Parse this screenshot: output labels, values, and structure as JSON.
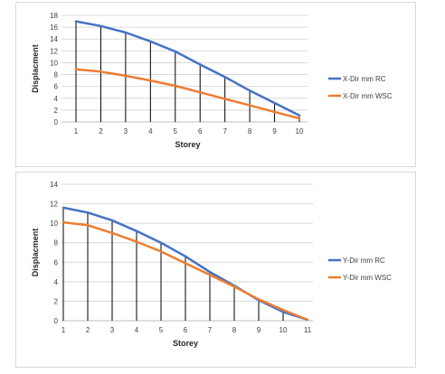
{
  "chart_data": [
    {
      "type": "line",
      "title": "",
      "xlabel": "Storey",
      "ylabel": "Displacment",
      "categories": [
        "1",
        "2",
        "3",
        "4",
        "5",
        "6",
        "7",
        "8",
        "9",
        "10"
      ],
      "ylim": [
        0,
        18
      ],
      "yticks": [
        "0",
        "2",
        "4",
        "6",
        "8",
        "10",
        "12",
        "14",
        "16",
        "18"
      ],
      "grid": true,
      "legend_position": "right",
      "series": [
        {
          "name": "X-Dir mm RC",
          "color": "#4472c4",
          "values": [
            17,
            16.2,
            15.1,
            13.6,
            11.9,
            9.7,
            7.6,
            5.3,
            3.2,
            1.1
          ]
        },
        {
          "name": "X-Dir mm WSC",
          "color": "#ed7d31",
          "values": [
            8.9,
            8.5,
            7.8,
            7.0,
            6.1,
            5.0,
            3.9,
            2.8,
            1.7,
            0.6
          ]
        }
      ],
      "drop_lines": true
    },
    {
      "type": "line",
      "title": "",
      "xlabel": "Storey",
      "ylabel": "Displacment",
      "categories": [
        "1",
        "2",
        "3",
        "4",
        "5",
        "6",
        "7",
        "8",
        "9",
        "10",
        "11"
      ],
      "ylim": [
        0,
        14
      ],
      "yticks": [
        "0",
        "2",
        "4",
        "6",
        "8",
        "10",
        "12",
        "14"
      ],
      "grid": true,
      "legend_position": "right",
      "series": [
        {
          "name": "Y-Dir mm RC",
          "color": "#4472c4",
          "values": [
            11.6,
            11.1,
            10.3,
            9.2,
            8.0,
            6.6,
            5.0,
            3.6,
            2.1,
            0.9,
            0.1
          ]
        },
        {
          "name": "Y-Dir mm WSC",
          "color": "#ed7d31",
          "values": [
            10.1,
            9.8,
            9.0,
            8.1,
            7.1,
            5.9,
            4.7,
            3.5,
            2.2,
            1.1,
            0.1
          ]
        }
      ],
      "drop_lines": true
    }
  ]
}
